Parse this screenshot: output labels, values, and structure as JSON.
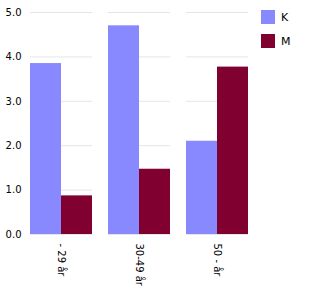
{
  "chart_data": {
    "type": "bar",
    "categories": [
      "- 29 år",
      "30-49 år",
      "50 - år"
    ],
    "series": [
      {
        "name": "K",
        "color": "#8888ff",
        "values": [
          3.85,
          4.7,
          2.1
        ]
      },
      {
        "name": "M",
        "color": "#800030",
        "values": [
          0.87,
          1.47,
          3.77
        ]
      }
    ],
    "ylim": [
      0,
      5
    ],
    "yticks": [
      0,
      1,
      2,
      3,
      4,
      5
    ],
    "grid": true,
    "legend": "upper right"
  }
}
